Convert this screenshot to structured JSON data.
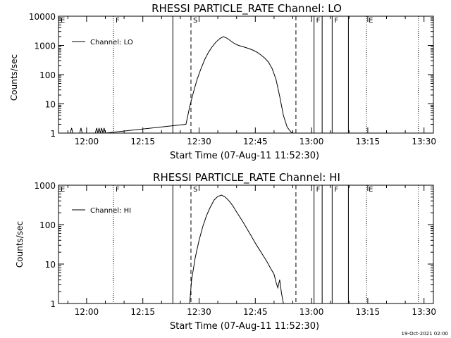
{
  "footer_stamp": "19-Oct-2021 02:00",
  "chart_data": [
    {
      "type": "line",
      "title": "RHESSI PARTICLE_RATE Channel: LO",
      "xlabel": "Start Time (07-Aug-11 11:52:30)",
      "ylabel": "Counts/sec",
      "yscale": "log",
      "xlim": [
        "11:52:30",
        "13:32:30"
      ],
      "ylim": [
        1,
        10000
      ],
      "xticks": [
        "12:00",
        "12:15",
        "12:30",
        "12:45",
        "13:00",
        "13:15",
        "13:30"
      ],
      "yticks": [
        "1",
        "10",
        "100",
        "1000",
        "10000"
      ],
      "legend": "Channel: LO",
      "legend_position": "upper-left",
      "series": [
        {
          "name": "Channel: LO",
          "x": [
            "11:55:40",
            "11:56:00",
            "11:56:20",
            "11:58:10",
            "11:58:30",
            "11:58:50",
            "12:02:20",
            "12:02:40",
            "12:03:00",
            "12:03:20",
            "12:03:40",
            "12:04:00",
            "12:04:20",
            "12:04:40",
            "12:05:00",
            "12:26:30",
            "12:27:30",
            "12:28:30",
            "12:29:30",
            "12:30:30",
            "12:31:30",
            "12:32:30",
            "12:33:30",
            "12:34:30",
            "12:35:30",
            "12:36:30",
            "12:37:30",
            "12:38:30",
            "12:39:30",
            "12:40:30",
            "12:41:30",
            "12:42:30",
            "12:43:30",
            "12:44:30",
            "12:45:30",
            "12:46:30",
            "12:47:30",
            "12:48:30",
            "12:49:30",
            "12:50:30",
            "12:51:30",
            "12:52:30",
            "12:53:30",
            "12:54:30",
            "12:55:00"
          ],
          "values": [
            1,
            1.5,
            1,
            1,
            1.5,
            1,
            1,
            1.5,
            1,
            1.5,
            1,
            1.5,
            1,
            1.5,
            1,
            2,
            8,
            25,
            70,
            160,
            330,
            580,
            900,
            1300,
            1700,
            2000,
            1750,
            1400,
            1150,
            1000,
            920,
            840,
            760,
            680,
            580,
            470,
            370,
            270,
            160,
            70,
            18,
            4,
            1.6,
            1.1,
            1
          ]
        }
      ],
      "markers": [
        {
          "label": "E",
          "time": "11:52:30",
          "style": "solid"
        },
        {
          "label": "F",
          "time": "12:07:10",
          "style": "dotted"
        },
        {
          "label": "",
          "time": "12:23:00",
          "style": "solid"
        },
        {
          "label": "S",
          "time": "12:27:50",
          "style": "dashed"
        },
        {
          "label": "",
          "time": "12:55:50",
          "style": "dashed"
        },
        {
          "label": "F",
          "time": "13:00:40",
          "style": "solid"
        },
        {
          "label": "",
          "time": "13:02:50",
          "style": "solid"
        },
        {
          "label": "F",
          "time": "13:05:30",
          "style": "solid"
        },
        {
          "label": "",
          "time": "13:09:50",
          "style": "solid"
        },
        {
          "label": "E",
          "time": "13:14:40",
          "style": "dotted"
        },
        {
          "label": "",
          "time": "13:28:30",
          "style": "dotted"
        }
      ]
    },
    {
      "type": "line",
      "title": "RHESSI PARTICLE_RATE Channel: HI",
      "xlabel": "Start Time (07-Aug-11 11:52:30)",
      "ylabel": "Counts/sec",
      "yscale": "log",
      "xlim": [
        "11:52:30",
        "13:32:30"
      ],
      "ylim": [
        1,
        1000
      ],
      "xticks": [
        "12:00",
        "12:15",
        "12:30",
        "12:45",
        "13:00",
        "13:15",
        "13:30"
      ],
      "yticks": [
        "1",
        "10",
        "100",
        "1000"
      ],
      "legend": "Channel: HI",
      "legend_position": "upper-left",
      "series": [
        {
          "name": "Channel: HI",
          "x": [
            "12:27:30",
            "12:28:00",
            "12:29:00",
            "12:30:00",
            "12:31:00",
            "12:32:00",
            "12:33:00",
            "12:34:00",
            "12:35:00",
            "12:36:00",
            "12:37:00",
            "12:38:00",
            "12:39:00",
            "12:40:00",
            "12:41:00",
            "12:42:00",
            "12:43:00",
            "12:44:00",
            "12:45:00",
            "12:46:00",
            "12:47:00",
            "12:48:00",
            "12:49:00",
            "12:50:00",
            "12:50:30",
            "12:51:00",
            "12:51:30",
            "12:52:00",
            "12:52:30"
          ],
          "values": [
            1,
            4,
            15,
            40,
            90,
            170,
            280,
            420,
            520,
            560,
            500,
            400,
            300,
            210,
            150,
            105,
            72,
            50,
            34,
            24,
            17,
            12,
            8,
            5.5,
            3.5,
            2.5,
            4,
            1.8,
            1
          ]
        }
      ],
      "markers": [
        {
          "label": "E",
          "time": "11:52:30",
          "style": "solid"
        },
        {
          "label": "F",
          "time": "12:07:10",
          "style": "dotted"
        },
        {
          "label": "",
          "time": "12:23:00",
          "style": "solid"
        },
        {
          "label": "S",
          "time": "12:27:50",
          "style": "dashed"
        },
        {
          "label": "",
          "time": "12:55:50",
          "style": "dashed"
        },
        {
          "label": "F",
          "time": "13:00:40",
          "style": "solid"
        },
        {
          "label": "",
          "time": "13:02:50",
          "style": "solid"
        },
        {
          "label": "F",
          "time": "13:05:30",
          "style": "solid"
        },
        {
          "label": "",
          "time": "13:09:50",
          "style": "solid"
        },
        {
          "label": "E",
          "time": "13:14:40",
          "style": "dotted"
        },
        {
          "label": "",
          "time": "13:28:30",
          "style": "dotted"
        }
      ]
    }
  ]
}
